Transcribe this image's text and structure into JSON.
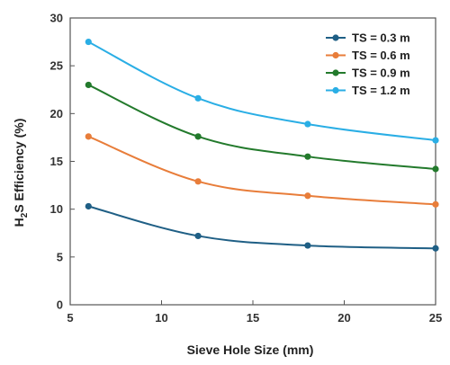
{
  "chart_data": {
    "type": "line",
    "smooth": true,
    "xlabel": "Sieve Hole Size (mm)",
    "ylabel_main": "H",
    "ylabel_sub": "2",
    "ylabel_rest": "S Efficiency (%)",
    "xlim": [
      5,
      25
    ],
    "ylim": [
      0,
      30
    ],
    "xticks": [
      5,
      10,
      15,
      20,
      25
    ],
    "yticks": [
      0,
      5,
      10,
      15,
      20,
      25,
      30
    ],
    "grid": false,
    "legend_position": "top-right",
    "x": [
      6,
      12,
      18,
      25
    ],
    "series": [
      {
        "name": "TS = 0.3 m",
        "color": "#1f5f85",
        "values": [
          10.3,
          7.2,
          6.2,
          5.9
        ]
      },
      {
        "name": "TS = 0.6 m",
        "color": "#e87d3a",
        "values": [
          17.6,
          12.9,
          11.4,
          10.5
        ]
      },
      {
        "name": "TS = 0.9 m",
        "color": "#237a2c",
        "values": [
          23.0,
          17.6,
          15.5,
          14.2
        ]
      },
      {
        "name": "TS = 1.2 m",
        "color": "#2aaee5",
        "values": [
          27.5,
          21.6,
          18.9,
          17.2
        ]
      }
    ]
  }
}
